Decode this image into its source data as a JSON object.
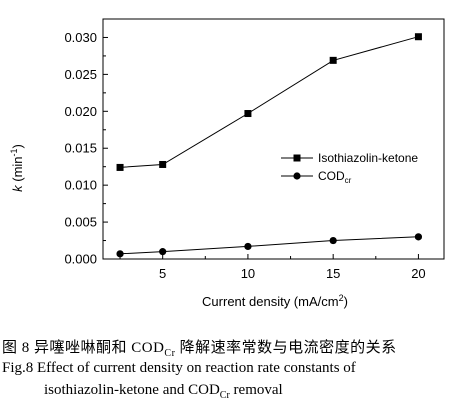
{
  "chart_data": {
    "type": "line",
    "title": "",
    "xlabel_prefix": "Current density (mA/cm",
    "xlabel_sup": "2",
    "xlabel_suffix": ")",
    "ylabel_italic": "k",
    "ylabel_rest": " (min",
    "ylabel_sup": "-1",
    "ylabel_end": ")",
    "xlim": [
      1.5,
      21.5
    ],
    "ylim": [
      0.0,
      0.0325
    ],
    "x_ticks": [
      5,
      10,
      15,
      20
    ],
    "y_ticks": [
      0.0,
      0.005,
      0.01,
      0.015,
      0.02,
      0.025,
      0.03
    ],
    "y_tick_labels": [
      "0.000",
      "0.005",
      "0.010",
      "0.015",
      "0.020",
      "0.025",
      "0.030"
    ],
    "legend_position": "right-middle",
    "series": [
      {
        "name": "Isothiazolin-ketone",
        "marker": "square",
        "x": [
          2.5,
          5,
          10,
          15,
          20
        ],
        "values": [
          0.0124,
          0.0128,
          0.0197,
          0.0269,
          0.0301
        ]
      },
      {
        "name_main": "COD",
        "name_sub": "cr",
        "marker": "circle",
        "x": [
          2.5,
          5,
          10,
          15,
          20
        ],
        "values": [
          0.0007,
          0.001,
          0.0017,
          0.0025,
          0.003
        ]
      }
    ]
  },
  "caption": {
    "cn_prefix": "图 8  异噻唑啉酮和 COD",
    "cn_sub": "Cr",
    "cn_suffix": " 降解速率常数与电流密度的关系",
    "en_line1": "Fig.8  Effect of current density on reaction rate constants of",
    "en_line2_prefix": "isothiazolin-ketone and COD",
    "en_line2_sub": "Cr",
    "en_line2_suffix": " removal"
  }
}
